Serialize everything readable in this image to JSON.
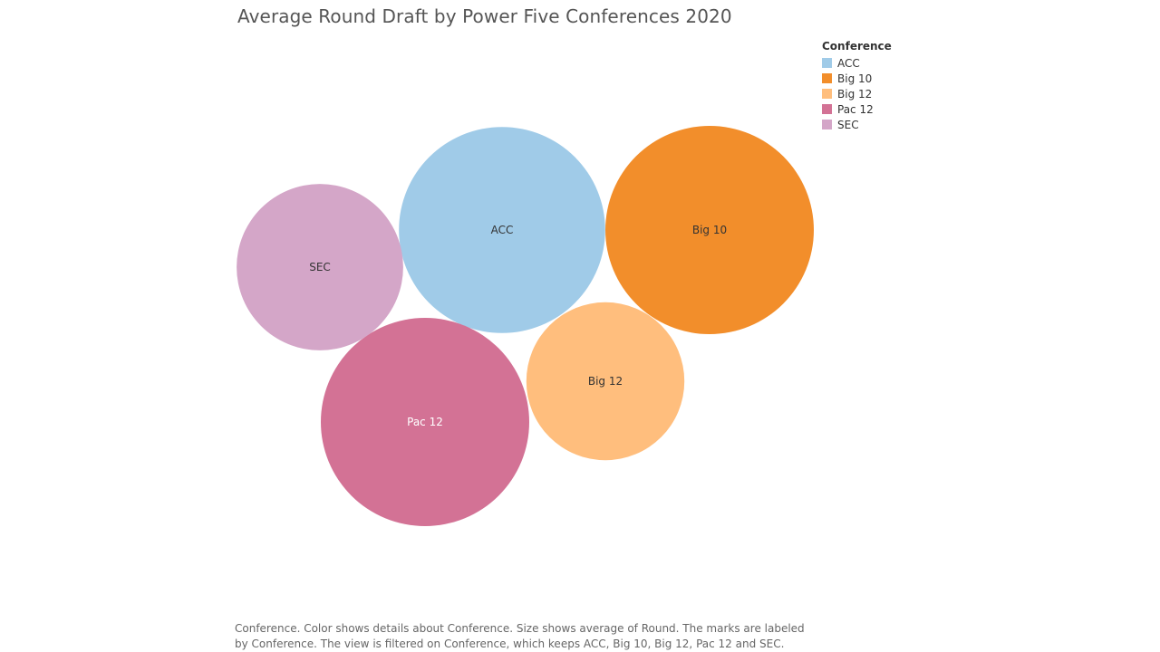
{
  "chart_data": {
    "type": "bubble",
    "title": "Average Round Draft by Power Five Conferences 2020",
    "legend": {
      "title": "Conference",
      "placement": "top-right"
    },
    "series": [
      {
        "name": "ACC",
        "value": 4.6,
        "color": "#A0CBE8",
        "label_color": "#333333"
      },
      {
        "name": "Big 10",
        "value": 4.7,
        "color": "#F28E2B",
        "label_color": "#333333"
      },
      {
        "name": "Big 12",
        "value": 2.7,
        "color": "#FFBE7D",
        "label_color": "#333333"
      },
      {
        "name": "Pac 12",
        "value": 4.7,
        "color": "#D37295",
        "label_color": "#ffffff"
      },
      {
        "name": "SEC",
        "value": 3.0,
        "color": "#D4A6C8",
        "label_color": "#333333"
      }
    ]
  },
  "caption": "Conference.  Color shows details about Conference.  Size shows average of Round.  The marks are labeled by Conference. The view is filtered on Conference, which keeps ACC, Big 10, Big 12, Pac 12 and SEC."
}
